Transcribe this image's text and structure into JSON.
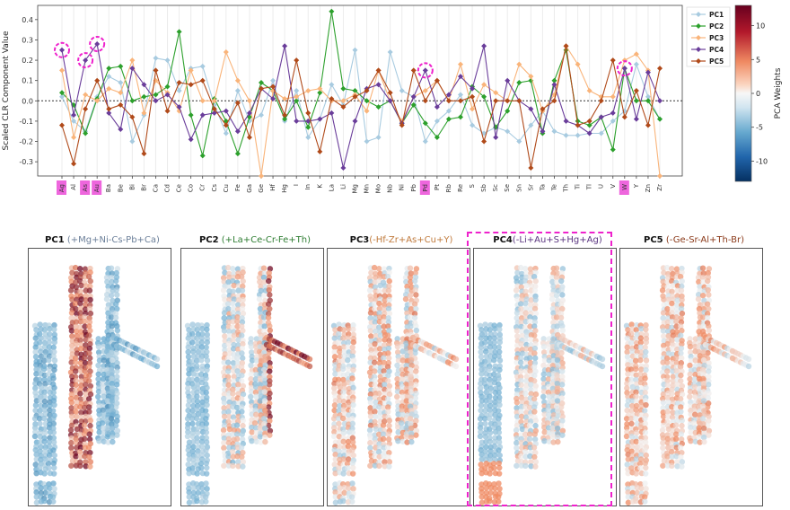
{
  "chart_data": [
    {
      "type": "line",
      "ylabel": "Scaled CLR Component Value",
      "ylim": [
        -0.37,
        0.47
      ],
      "yticks": [
        -0.3,
        -0.2,
        -0.1,
        0.0,
        0.1,
        0.2,
        0.3,
        0.4
      ],
      "ytick_labels": [
        "-0.3",
        "-0.2",
        "-0.1",
        "0.0",
        "0.1",
        "0.2",
        "0.3",
        "0.4"
      ],
      "legend_position": "right",
      "colorbar": {
        "label": "PCA Weights",
        "ticks": [
          "10",
          "5",
          "0",
          "-5",
          "-10"
        ],
        "range": [
          -13,
          13
        ]
      },
      "categories": [
        "Ag",
        "Al",
        "As",
        "Au",
        "Ba",
        "Be",
        "Bi",
        "Br",
        "Ca",
        "Cd",
        "Ce",
        "Co",
        "Cr",
        "Cs",
        "Cu",
        "Fe",
        "Ga",
        "Ge",
        "Hf",
        "Hg",
        "I",
        "In",
        "K",
        "La",
        "Li",
        "Mg",
        "Mn",
        "Mo",
        "Nb",
        "Ni",
        "Pb",
        "Pd",
        "Pt",
        "Rb",
        "Re",
        "S",
        "Sb",
        "Sc",
        "Se",
        "Sn",
        "Sr",
        "Ta",
        "Te",
        "Th",
        "Ti",
        "Tl",
        "U",
        "V",
        "W",
        "Y",
        "Zn",
        "Zr"
      ],
      "highlighted_categories": [
        "Ag",
        "As",
        "Au",
        "Pd",
        "W"
      ],
      "series": [
        {
          "name": "PC1",
          "color": "#a8cbe0",
          "values": [
            0.02,
            -0.1,
            -0.15,
            0.02,
            0.12,
            0.09,
            -0.2,
            -0.07,
            0.21,
            0.2,
            0.05,
            0.16,
            0.17,
            -0.02,
            -0.16,
            0.05,
            -0.1,
            -0.07,
            0.1,
            -0.1,
            0.05,
            -0.18,
            -0.09,
            0.08,
            -0.02,
            0.25,
            -0.2,
            -0.18,
            0.24,
            0.05,
            0.02,
            -0.2,
            -0.1,
            -0.05,
            0.03,
            -0.12,
            -0.16,
            -0.13,
            -0.15,
            -0.2,
            -0.12,
            -0.05,
            -0.15,
            -0.17,
            -0.17,
            -0.16,
            -0.16,
            -0.1,
            -0.05,
            0.18,
            0.02,
            -0.09
          ]
        },
        {
          "name": "PC2",
          "color": "#2ca02c",
          "values": [
            0.04,
            -0.02,
            -0.16,
            0.01,
            0.16,
            0.17,
            0.0,
            0.02,
            0.03,
            0.07,
            0.34,
            -0.07,
            -0.27,
            0.01,
            -0.1,
            -0.26,
            -0.08,
            0.09,
            0.05,
            -0.09,
            0.0,
            -0.13,
            0.04,
            0.44,
            0.06,
            0.05,
            0.0,
            -0.03,
            0.0,
            -0.11,
            -0.02,
            -0.11,
            -0.18,
            -0.09,
            -0.08,
            0.07,
            0.02,
            -0.13,
            -0.05,
            0.09,
            0.1,
            -0.16,
            0.1,
            0.25,
            -0.1,
            -0.12,
            -0.08,
            -0.24,
            0.16,
            0.0,
            0.0,
            -0.09
          ]
        },
        {
          "name": "PC3",
          "color": "#f9b47a",
          "values": [
            0.15,
            -0.18,
            0.03,
            0.0,
            0.06,
            0.04,
            0.2,
            -0.06,
            0.1,
            0.04,
            -0.05,
            0.15,
            0.0,
            0.0,
            0.24,
            0.1,
            0.0,
            -0.37,
            0.05,
            0.01,
            0.02,
            0.05,
            0.06,
            0.0,
            0.0,
            0.03,
            -0.05,
            0.15,
            0.0,
            -0.1,
            0.02,
            0.05,
            0.1,
            0.0,
            0.18,
            -0.04,
            0.08,
            0.04,
            0.0,
            0.18,
            0.12,
            -0.05,
            0.03,
            0.27,
            0.18,
            0.05,
            0.02,
            0.02,
            0.2,
            0.23,
            0.15,
            -0.37
          ]
        },
        {
          "name": "PC4",
          "color": "#6a3d9a",
          "values": [
            0.25,
            -0.07,
            0.2,
            0.28,
            -0.06,
            -0.14,
            0.16,
            0.08,
            0.0,
            0.03,
            -0.03,
            -0.19,
            -0.07,
            -0.06,
            -0.05,
            -0.15,
            -0.06,
            0.06,
            0.01,
            0.27,
            -0.1,
            -0.1,
            -0.09,
            -0.06,
            -0.33,
            -0.1,
            0.06,
            0.08,
            0.0,
            -0.11,
            0.02,
            0.15,
            -0.03,
            0.03,
            0.12,
            0.06,
            0.27,
            -0.18,
            0.1,
            0.0,
            -0.04,
            -0.15,
            0.08,
            -0.1,
            -0.12,
            -0.16,
            -0.08,
            -0.06,
            0.16,
            -0.09,
            0.14,
            0.0
          ]
        },
        {
          "name": "PC5",
          "color": "#b04a1a",
          "values": [
            -0.12,
            -0.31,
            -0.04,
            0.1,
            -0.04,
            -0.02,
            -0.08,
            -0.26,
            0.15,
            -0.05,
            0.09,
            0.08,
            0.1,
            -0.04,
            -0.12,
            -0.01,
            -0.18,
            0.06,
            0.07,
            -0.07,
            0.2,
            -0.06,
            -0.25,
            0.01,
            -0.03,
            0.02,
            0.05,
            0.15,
            0.04,
            -0.12,
            0.15,
            0.0,
            0.1,
            0.0,
            0.0,
            0.02,
            -0.2,
            0.0,
            0.0,
            0.0,
            -0.33,
            -0.04,
            0.0,
            0.27,
            -0.12,
            -0.1,
            0.0,
            0.2,
            -0.08,
            0.05,
            -0.12,
            0.16
          ]
        }
      ]
    },
    {
      "type": "heatmap",
      "panels": [
        {
          "label": "PC1",
          "expr": " (+Mg+Ni-Cs-Pb+Ca)",
          "expr_color": "#6b7f99",
          "highlight": false
        },
        {
          "label": "PC2",
          "expr": " (+La+Ce-Cr-Fe+Th)",
          "expr_color": "#2e7d32",
          "highlight": false
        },
        {
          "label": "PC3",
          "expr": "(-Hf-Zr+As+Cu+Y)",
          "expr_color": "#c07a3c",
          "highlight": false
        },
        {
          "label": "PC4",
          "expr": "(-Li+Au+S+Hg+Ag)",
          "expr_color": "#5b3680",
          "highlight": true
        },
        {
          "label": "PC5",
          "expr": " (-Ge-Sr-Al+Th-Br)",
          "expr_color": "#8b3a1a",
          "highlight": false
        }
      ]
    }
  ]
}
